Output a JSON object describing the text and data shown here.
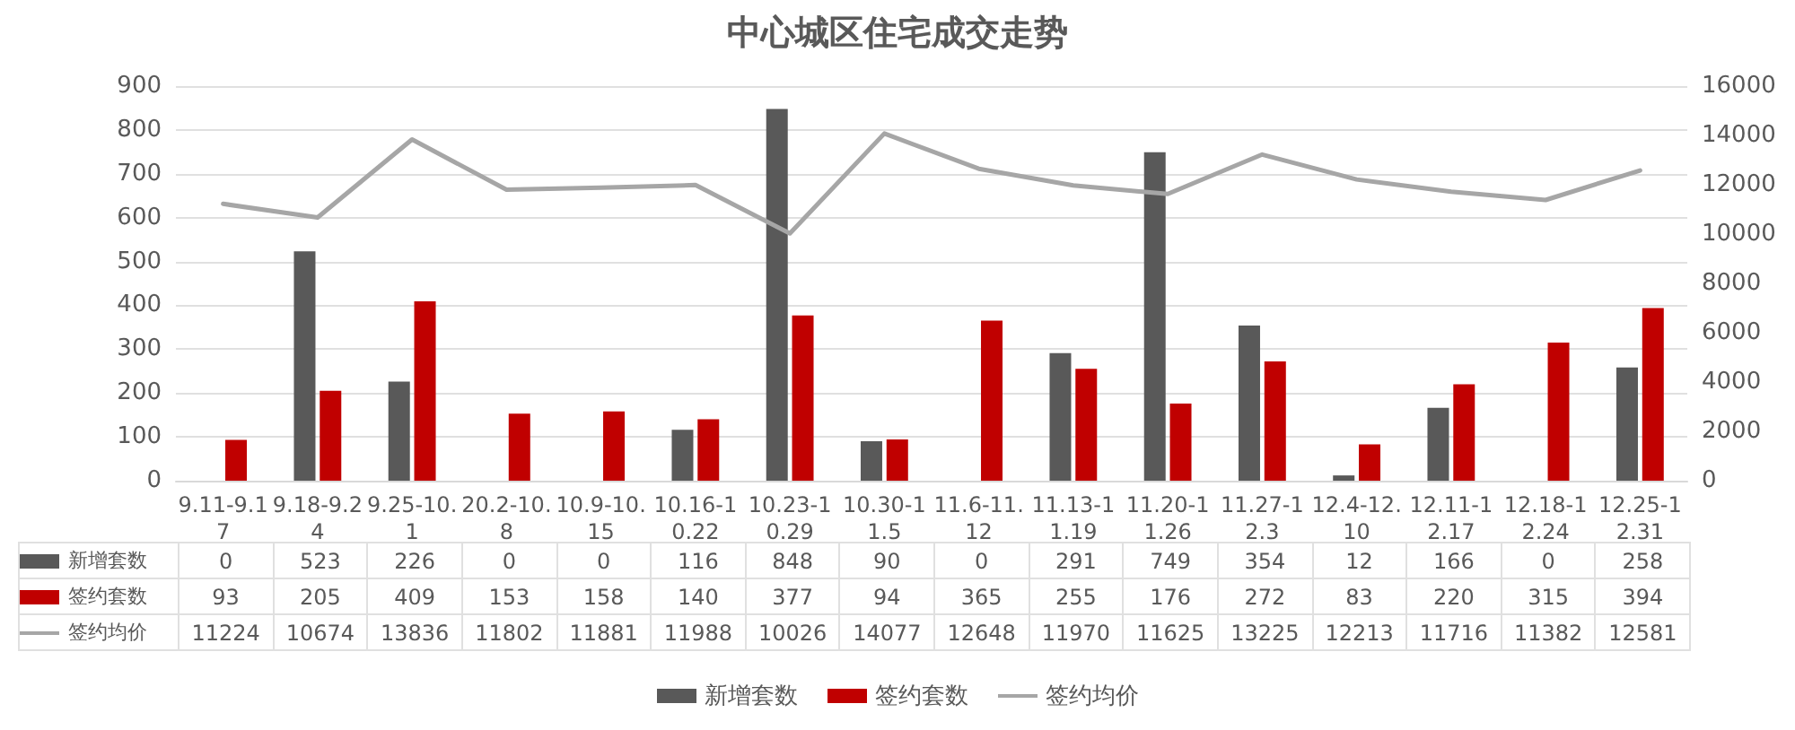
{
  "chart_data": {
    "type": "bar",
    "title": "中心城区住宅成交走势",
    "categories": [
      "9.11-9.17",
      "9.18-9.24",
      "9.25-10.1",
      "20.2-10.8",
      "10.9-10.15",
      "10.16-10.22",
      "10.23-10.29",
      "10.30-11.5",
      "11.6-11.12",
      "11.13-11.19",
      "11.20-11.26",
      "11.27-12.3",
      "12.4-12.10",
      "12.11-12.17",
      "12.18-12.24",
      "12.25-12.31"
    ],
    "series": [
      {
        "name": "新增套数",
        "color": "#595959",
        "values": [
          0,
          523,
          226,
          0,
          0,
          116,
          848,
          90,
          0,
          291,
          749,
          354,
          12,
          166,
          0,
          258
        ]
      },
      {
        "name": "签约套数",
        "color": "#c00000",
        "values": [
          93,
          205,
          409,
          153,
          158,
          140,
          377,
          94,
          365,
          255,
          176,
          272,
          83,
          220,
          315,
          394
        ]
      },
      {
        "name": "签约均价",
        "type": "line",
        "axis": "y2",
        "color": "#a6a6a6",
        "values": [
          11224,
          10674,
          13836,
          11802,
          11881,
          11988,
          10026,
          14077,
          12648,
          11970,
          11625,
          13225,
          12213,
          11716,
          11382,
          12581
        ]
      }
    ],
    "ylim": [
      0,
      900
    ],
    "yticks": [
      0,
      100,
      200,
      300,
      400,
      500,
      600,
      700,
      800,
      900
    ],
    "y2lim": [
      0,
      16000
    ],
    "y2ticks": [
      0,
      2000,
      4000,
      6000,
      8000,
      10000,
      12000,
      14000,
      16000
    ],
    "grid": "y",
    "legend": "bottom",
    "marker": "none",
    "data_labels": true
  }
}
